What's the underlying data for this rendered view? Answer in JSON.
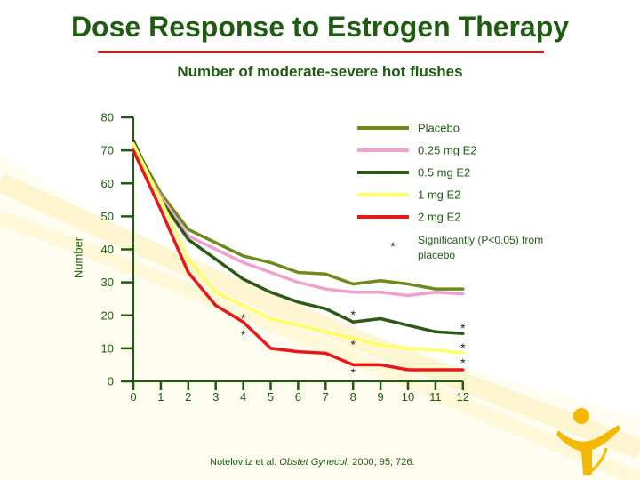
{
  "title": "Dose Response to Estrogen Therapy",
  "subtitle": "Number of moderate-severe hot flushes",
  "citation": {
    "authors": "Notelovitz et al.",
    "journal": "Obstet Gynecol.",
    "details": "2000; 95; 726."
  },
  "colors": {
    "title": "#1f5c12",
    "rule": "#cc2020",
    "axis": "#1f5c12",
    "swoosh": "#fbe9a8",
    "logo": "#f5b800"
  },
  "chart_data": {
    "type": "line",
    "title": "Number of moderate-severe hot flushes",
    "xlabel": "",
    "ylabel": "Number",
    "xlim": [
      0,
      12
    ],
    "ylim": [
      0,
      80
    ],
    "x_ticks": [
      0,
      1,
      2,
      3,
      4,
      5,
      6,
      7,
      8,
      9,
      10,
      11,
      12
    ],
    "y_ticks": [
      0,
      10,
      20,
      30,
      40,
      50,
      60,
      70,
      80
    ],
    "grid": false,
    "legend_position": "top-right",
    "series": [
      {
        "name": "Placebo",
        "color": "#6f8a1c",
        "x": [
          0,
          1,
          2,
          3,
          4,
          5,
          6,
          7,
          8,
          9,
          10,
          11,
          12
        ],
        "y": [
          72,
          57,
          46,
          42,
          38,
          36,
          33,
          32.5,
          29.5,
          30.5,
          29.5,
          28,
          28
        ]
      },
      {
        "name": "0.25 mg E2",
        "color": "#f0a0cc",
        "x": [
          0,
          1,
          2,
          3,
          4,
          5,
          6,
          7,
          8,
          9,
          10,
          11,
          12
        ],
        "y": [
          71,
          56,
          44,
          40,
          36,
          33,
          30,
          28,
          27,
          27,
          26,
          27,
          26.5
        ]
      },
      {
        "name": "0.5 mg E2",
        "color": "#2e5a16",
        "x": [
          0,
          1,
          2,
          3,
          4,
          5,
          6,
          7,
          8,
          9,
          10,
          11,
          12
        ],
        "y": [
          73,
          55,
          43,
          37,
          31,
          27,
          24,
          22,
          18,
          19,
          17,
          15,
          14.5
        ]
      },
      {
        "name": "1 mg E2",
        "color": "#ffff66",
        "x": [
          0,
          1,
          2,
          3,
          4,
          5,
          6,
          7,
          8,
          9,
          10,
          11,
          12
        ],
        "y": [
          72,
          55,
          37,
          27,
          23,
          19,
          17,
          15,
          13,
          11,
          10,
          9.5,
          8.5
        ]
      },
      {
        "name": "2 mg E2",
        "color": "#e81818",
        "x": [
          0,
          1,
          2,
          3,
          4,
          5,
          6,
          7,
          8,
          9,
          10,
          11,
          12
        ],
        "y": [
          70,
          52,
          33,
          23,
          18,
          10,
          9,
          8.5,
          5,
          5,
          3.5,
          3.5,
          3.5
        ]
      }
    ],
    "significance": {
      "symbol": "*",
      "label": "Significantly (P<0.05) from placebo",
      "markers": [
        {
          "x": 4,
          "y": 20
        },
        {
          "x": 4,
          "y": 15
        },
        {
          "x": 8,
          "y": 21
        },
        {
          "x": 8,
          "y": 12
        },
        {
          "x": 8,
          "y": 3.5
        },
        {
          "x": 12,
          "y": 17
        },
        {
          "x": 12,
          "y": 11
        },
        {
          "x": 12,
          "y": 6.5
        }
      ]
    }
  }
}
